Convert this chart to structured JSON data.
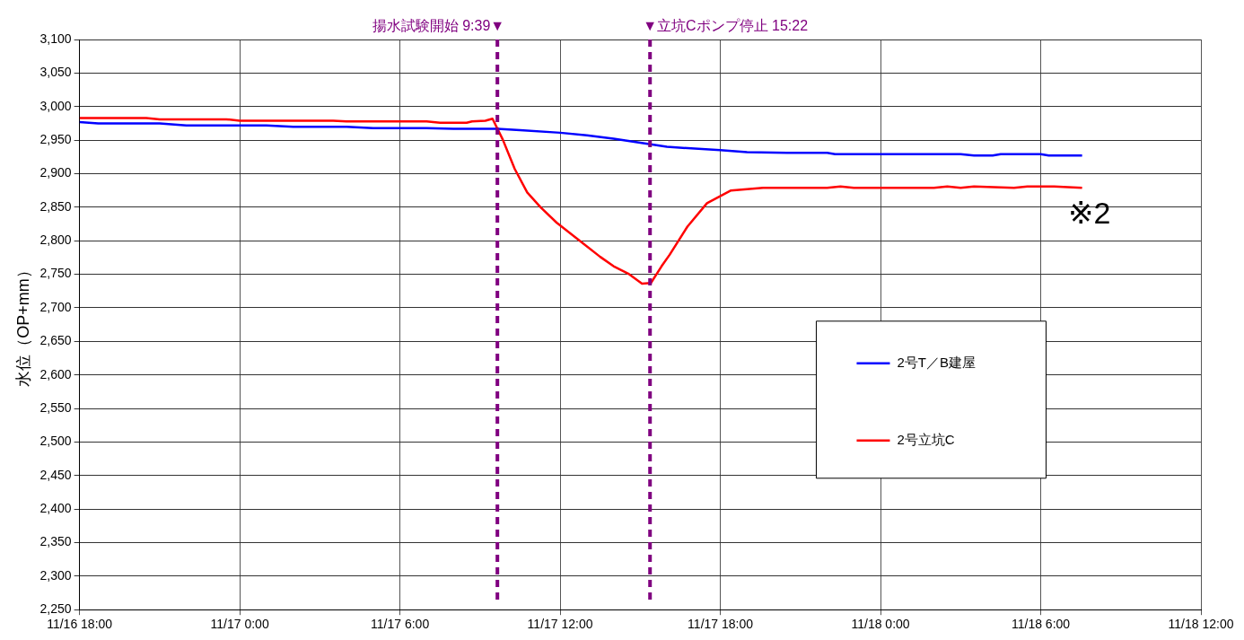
{
  "chart_data": {
    "type": "line",
    "ylabel": "水位（OP+mm）",
    "xlim": [
      "--11-16T18:00",
      "--11-18T12:00"
    ],
    "xticks": [
      {
        "value": "--11-16T18:00",
        "label": "11/16 18:00"
      },
      {
        "value": "--11-17T00:00",
        "label": "11/17 0:00"
      },
      {
        "value": "--11-17T06:00",
        "label": "11/17 6:00"
      },
      {
        "value": "--11-17T12:00",
        "label": "11/17 12:00"
      },
      {
        "value": "--11-17T18:00",
        "label": "11/17 18:00"
      },
      {
        "value": "--11-18T00:00",
        "label": "11/18 0:00"
      },
      {
        "value": "--11-18T06:00",
        "label": "11/18 6:00"
      },
      {
        "value": "--11-18T12:00",
        "label": "11/18 12:00"
      }
    ],
    "ylim": [
      2250,
      3100
    ],
    "yticks": [
      {
        "value": 2250,
        "label": "2,250"
      },
      {
        "value": 2300,
        "label": "2,300"
      },
      {
        "value": 2350,
        "label": "2,350"
      },
      {
        "value": 2400,
        "label": "2,400"
      },
      {
        "value": 2450,
        "label": "2,450"
      },
      {
        "value": 2500,
        "label": "2,500"
      },
      {
        "value": 2550,
        "label": "2,550"
      },
      {
        "value": 2600,
        "label": "2,600"
      },
      {
        "value": 2650,
        "label": "2,650"
      },
      {
        "value": 2700,
        "label": "2,700"
      },
      {
        "value": 2750,
        "label": "2,750"
      },
      {
        "value": 2800,
        "label": "2,800"
      },
      {
        "value": 2850,
        "label": "2,850"
      },
      {
        "value": 2900,
        "label": "2,900"
      },
      {
        "value": 2950,
        "label": "2,950"
      },
      {
        "value": 3000,
        "label": "3,000"
      },
      {
        "value": 3050,
        "label": "3,050"
      },
      {
        "value": 3100,
        "label": "3,100"
      }
    ],
    "grid": true,
    "legend": "right",
    "marker": "none",
    "line_style": "solid",
    "series": [
      {
        "name": "2号T／B建屋",
        "color": "#0000ff",
        "x": [
          "--11-16T18:00",
          "--11-16T18:42",
          "--11-16T21:00",
          "--11-16T22:00",
          "--11-17T01:00",
          "--11-17T02:00",
          "--11-17T04:00",
          "--11-17T05:00",
          "--11-17T07:00",
          "--11-17T08:00",
          "--11-17T09:39",
          "--11-17T10:30",
          "--11-17T12:00",
          "--11-17T13:00",
          "--11-17T14:00",
          "--11-17T15:00",
          "--11-17T15:30",
          "--11-17T16:00",
          "--11-17T18:00",
          "--11-17T19:00",
          "--11-17T20:30",
          "--11-17T22:00",
          "--11-17T22:18",
          "--11-18T03:00",
          "--11-18T03:30",
          "--11-18T04:12",
          "--11-18T04:30",
          "--11-18T06:00",
          "--11-18T06:18",
          "--11-18T07:33"
        ],
        "values": [
          2977,
          2975,
          2975,
          2972,
          2972,
          2970,
          2970,
          2968,
          2968,
          2967,
          2967,
          2965,
          2961,
          2957,
          2952,
          2946,
          2943,
          2940,
          2935,
          2932,
          2931,
          2931,
          2929,
          2929,
          2927,
          2927,
          2929,
          2929,
          2927,
          2927
        ]
      },
      {
        "name": "2号立坑C",
        "color": "#ff0000",
        "x": [
          "--11-16T18:00",
          "--11-16T20:30",
          "--11-16T21:00",
          "--11-16T23:30",
          "--11-17T00:00",
          "--11-17T03:30",
          "--11-17T04:00",
          "--11-17T07:00",
          "--11-17T07:30",
          "--11-17T08:30",
          "--11-17T08:42",
          "--11-17T09:12",
          "--11-17T09:28",
          "--11-17T09:51",
          "--11-17T10:18",
          "--11-17T10:46",
          "--11-17T11:16",
          "--11-17T11:52",
          "--11-17T12:46",
          "--11-17T13:30",
          "--11-17T14:00",
          "--11-17T14:33",
          "--11-17T15:04",
          "--11-17T15:24",
          "--11-17T15:48",
          "--11-17T16:06",
          "--11-17T16:46",
          "--11-17T17:30",
          "--11-17T18:24",
          "--11-17T19:36",
          "--11-17T22:00",
          "--11-17T22:30",
          "--11-17T23:00",
          "--11-18T02:00",
          "--11-18T02:30",
          "--11-18T03:00",
          "--11-18T03:30",
          "--11-18T05:00",
          "--11-18T05:30",
          "--11-18T06:30",
          "--11-18T07:33"
        ],
        "values": [
          2983,
          2983,
          2981,
          2981,
          2979,
          2979,
          2978,
          2978,
          2976,
          2976,
          2978,
          2979,
          2982,
          2951,
          2907,
          2872,
          2850,
          2827,
          2799,
          2776,
          2762,
          2751,
          2736,
          2737,
          2762,
          2779,
          2821,
          2856,
          2875,
          2879,
          2879,
          2881,
          2879,
          2879,
          2881,
          2879,
          2881,
          2879,
          2881,
          2881,
          2879
        ]
      }
    ],
    "ref_lines": [
      {
        "axis": "x",
        "value": "--11-17T09:39",
        "label": "揚水試験開始 9:39▼",
        "color": "#800080",
        "line_style": "dashed"
      },
      {
        "axis": "x",
        "value": "--11-17T15:22",
        "label": "▼立坑Cポンプ停止 15:22",
        "color": "#800080",
        "line_style": "dashed"
      }
    ],
    "annotations": [
      "※2"
    ]
  }
}
